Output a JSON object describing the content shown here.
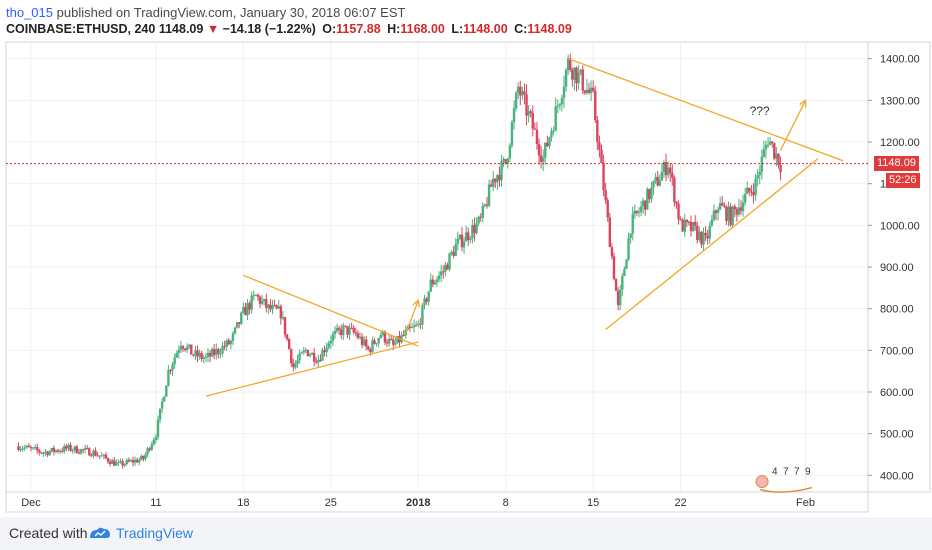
{
  "header": {
    "user": "tho_015",
    "published": "published on TradingView.com, January 30, 2018 06:07 EST",
    "symbol": "COINBASE:ETHUSD, 240",
    "last": "1148.09",
    "change": "−14.18 (−1.22%)",
    "open_label": "O:",
    "open": "1157.88",
    "high_label": "H:",
    "high": "1168.00",
    "low_label": "L:",
    "low": "1148.00",
    "close_label": "C:",
    "close": "1148.09"
  },
  "price_tag": {
    "value": "1148.09",
    "countdown": "52:26"
  },
  "annotation": "???",
  "event_markers": [
    "4",
    "7",
    "7",
    "9"
  ],
  "footer": {
    "created_with": "Created with",
    "brand": "TradingView"
  },
  "colors": {
    "up": "#4bb27f",
    "down": "#d9455f",
    "trend": "#f5a623",
    "price_line": "#d12a2a"
  },
  "chart_data": {
    "type": "candlestick",
    "title": "COINBASE:ETHUSD, 240",
    "ylim": [
      360,
      1440
    ],
    "yticks": [
      "400.00",
      "500.00",
      "600.00",
      "700.00",
      "800.00",
      "900.00",
      "1000.00",
      "1100.00",
      "1200.00",
      "1300.00",
      "1400.00"
    ],
    "xticks": [
      "Dec",
      "11",
      "18",
      "25",
      "2018",
      "8",
      "15",
      "22",
      "Feb"
    ],
    "grid": true,
    "last_price": 1148.09,
    "close_path": [
      [
        "2017-11-30",
        470
      ],
      [
        "2017-12-02",
        455
      ],
      [
        "2017-12-04",
        465
      ],
      [
        "2017-12-06",
        455
      ],
      [
        "2017-12-08",
        425
      ],
      [
        "2017-12-10",
        440
      ],
      [
        "2017-12-11",
        500
      ],
      [
        "2017-12-12",
        650
      ],
      [
        "2017-12-13",
        720
      ],
      [
        "2017-12-14",
        690
      ],
      [
        "2017-12-15",
        680
      ],
      [
        "2017-12-16",
        700
      ],
      [
        "2017-12-17",
        720
      ],
      [
        "2017-12-18",
        790
      ],
      [
        "2017-12-19",
        830
      ],
      [
        "2017-12-20",
        800
      ],
      [
        "2017-12-21",
        790
      ],
      [
        "2017-12-22",
        660
      ],
      [
        "2017-12-23",
        700
      ],
      [
        "2017-12-24",
        680
      ],
      [
        "2017-12-25",
        730
      ],
      [
        "2017-12-26",
        750
      ],
      [
        "2017-12-27",
        740
      ],
      [
        "2017-12-28",
        700
      ],
      [
        "2017-12-29",
        740
      ],
      [
        "2017-12-30",
        710
      ],
      [
        "2017-12-31",
        740
      ],
      [
        "2018-01-01",
        760
      ],
      [
        "2018-01-02",
        860
      ],
      [
        "2018-01-03",
        890
      ],
      [
        "2018-01-04",
        950
      ],
      [
        "2018-01-05",
        980
      ],
      [
        "2018-01-06",
        1010
      ],
      [
        "2018-01-07",
        1110
      ],
      [
        "2018-01-08",
        1150
      ],
      [
        "2018-01-09",
        1330
      ],
      [
        "2018-01-10",
        1250
      ],
      [
        "2018-01-11",
        1160
      ],
      [
        "2018-01-12",
        1270
      ],
      [
        "2018-01-13",
        1390
      ],
      [
        "2018-01-14",
        1350
      ],
      [
        "2018-01-15",
        1300
      ],
      [
        "2018-01-16",
        1050
      ],
      [
        "2018-01-17",
        800
      ],
      [
        "2018-01-18",
        1000
      ],
      [
        "2018-01-19",
        1050
      ],
      [
        "2018-01-20",
        1100
      ],
      [
        "2018-01-21",
        1150
      ],
      [
        "2018-01-22",
        1000
      ],
      [
        "2018-01-23",
        990
      ],
      [
        "2018-01-24",
        960
      ],
      [
        "2018-01-25",
        1050
      ],
      [
        "2018-01-26",
        1020
      ],
      [
        "2018-01-27",
        1060
      ],
      [
        "2018-01-28",
        1100
      ],
      [
        "2018-01-29",
        1210
      ],
      [
        "2018-01-30",
        1148
      ]
    ],
    "trendlines": [
      {
        "from": [
          "2017-12-18",
          880
        ],
        "to": [
          "2018-01-01",
          710
        ]
      },
      {
        "from": [
          "2017-12-15",
          590
        ],
        "to": [
          "2018-01-01",
          720
        ]
      },
      {
        "from": [
          "2018-01-13",
          1400
        ],
        "to": [
          "2018-02-04",
          1155
        ]
      },
      {
        "from": [
          "2018-01-16",
          750
        ],
        "to": [
          "2018-02-02",
          1160
        ]
      }
    ],
    "arrows": [
      {
        "from": [
          "2017-12-31",
          740
        ],
        "to": [
          "2018-01-01",
          820
        ]
      },
      {
        "from": [
          "2018-01-30",
          1180
        ],
        "to": [
          "2018-02-01",
          1300
        ]
      }
    ]
  }
}
